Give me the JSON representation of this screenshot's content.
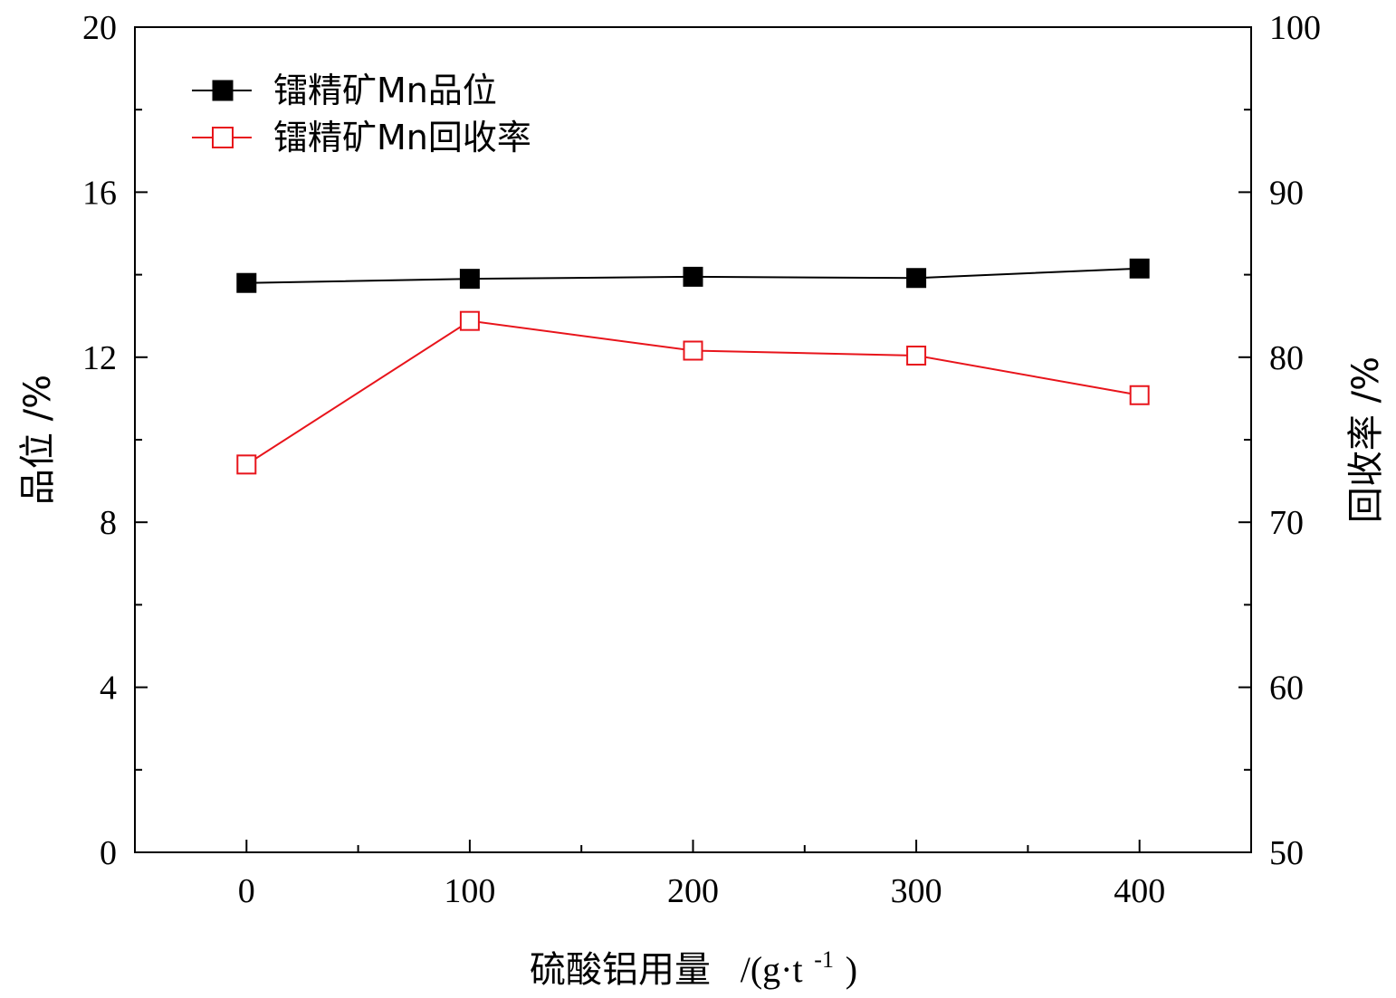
{
  "chart_data": {
    "type": "line",
    "x": [
      0,
      100,
      200,
      300,
      400
    ],
    "x_ticks": [
      "0",
      "100",
      "200",
      "300",
      "400"
    ],
    "xlim": [
      -50,
      450
    ],
    "xlabel": "硫酸铝用量",
    "xlabel_unit_prefix": "/(g·t",
    "xlabel_unit_sup": "-1",
    "xlabel_unit_suffix": ")",
    "ylabel_left": "品位  /%",
    "ylabel_right": "回收率  /%",
    "ylim_left": [
      0,
      20
    ],
    "ylim_right": [
      50,
      100
    ],
    "y_ticks_left": [
      "0",
      "4",
      "8",
      "12",
      "16",
      "20"
    ],
    "y_ticks_right": [
      "50",
      "60",
      "70",
      "80",
      "90",
      "100"
    ],
    "grid": false,
    "legend_position": "top-left",
    "series": [
      {
        "name": "镭精矿Mn品位",
        "axis": "left",
        "marker": "filled-square",
        "color": "#000000",
        "values": [
          13.8,
          13.9,
          13.95,
          13.92,
          14.15
        ]
      },
      {
        "name": "镭精矿Mn回收率",
        "axis": "right",
        "marker": "open-square",
        "color": "#e8141b",
        "values": [
          73.5,
          82.2,
          80.4,
          80.1,
          77.7
        ]
      }
    ]
  }
}
